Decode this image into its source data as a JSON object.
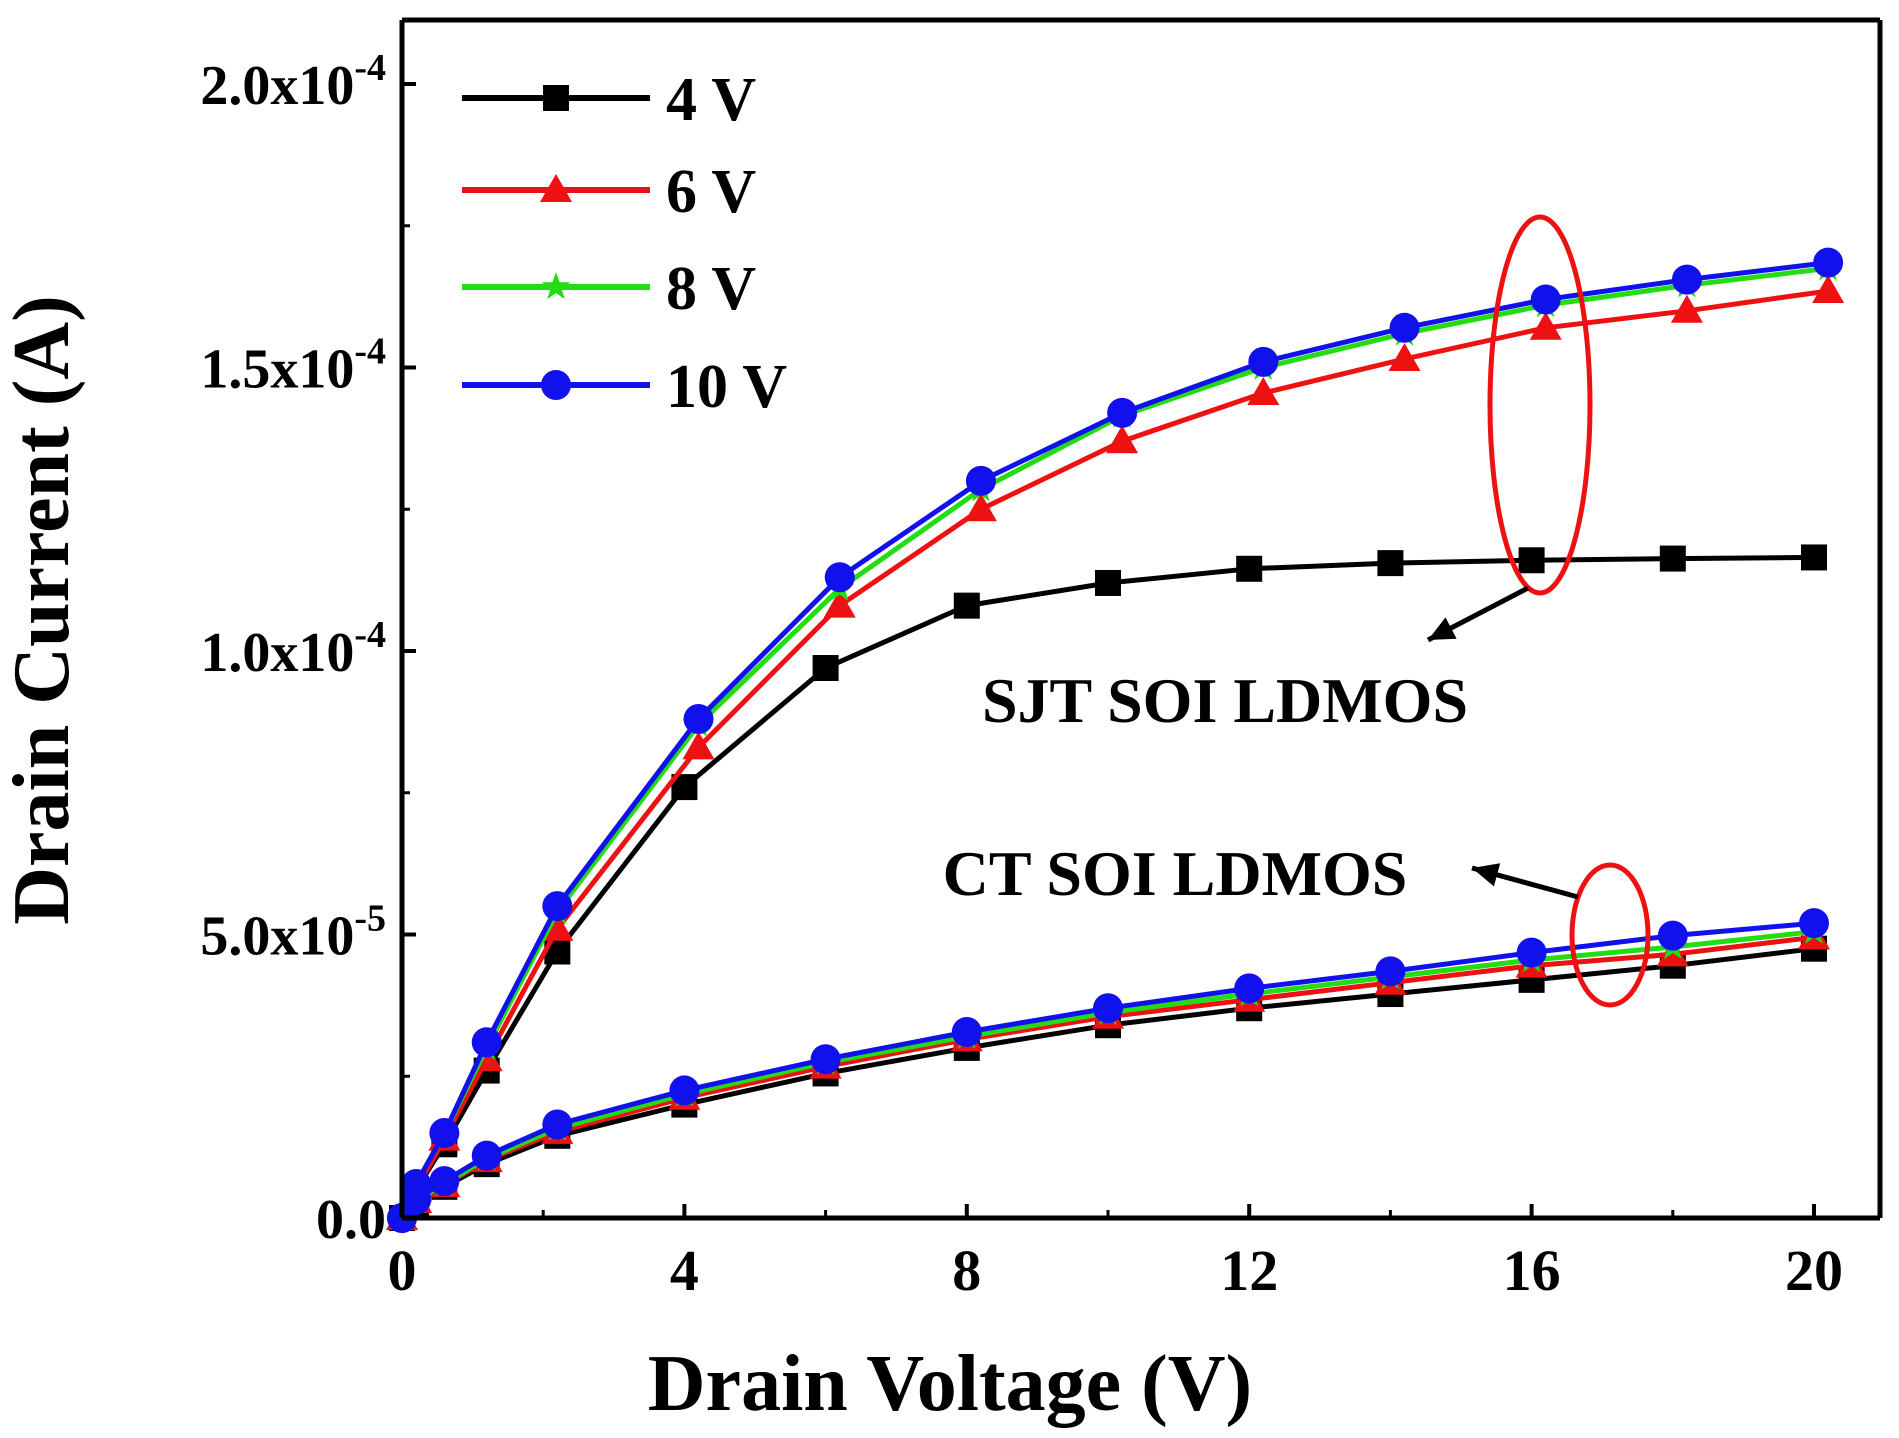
{
  "chart_data": {
    "type": "line",
    "title": "",
    "xlabel": "Drain Voltage (V)",
    "ylabel": "Drain Current (A)",
    "xlim": [
      0,
      20.8
    ],
    "ylim": [
      0,
      0.000211
    ],
    "grid": false,
    "legend_position": "top-left",
    "x_ticks": [
      0,
      4,
      8,
      12,
      16,
      20
    ],
    "x_tick_labels": [
      "0",
      "4",
      "8",
      "12",
      "16",
      "20"
    ],
    "y_ticks": [
      0,
      5e-05,
      0.0001,
      0.00015,
      0.0002
    ],
    "y_tick_labels": [
      {
        "mant": "0.0",
        "exp": ""
      },
      {
        "mant": "5.0x10",
        "exp": "-5"
      },
      {
        "mant": "1.0x10",
        "exp": "-4"
      },
      {
        "mant": "1.5x10",
        "exp": "-4"
      },
      {
        "mant": "2.0x10",
        "exp": "-4"
      }
    ],
    "series": [
      {
        "name": "4 V",
        "color": "#000000",
        "marker": "square",
        "curves": [
          {
            "group": "SJT SOI LDMOS",
            "x": [
              0,
              0.2,
              0.6,
              1.2,
              2.2,
              4,
              6,
              8,
              10,
              12,
              14,
              16,
              18,
              20
            ],
            "y": [
              0,
              5e-06,
              1.3e-05,
              2.6e-05,
              4.7e-05,
              7.6e-05,
              9.7e-05,
              0.000108,
              0.000112,
              0.0001145,
              0.0001155,
              0.000116,
              0.0001163,
              0.0001165
            ]
          },
          {
            "group": "CT SOI LDMOS",
            "x": [
              0,
              0.2,
              0.6,
              1.2,
              2.2,
              4,
              6,
              8,
              10,
              12,
              14,
              16,
              18,
              20
            ],
            "y": [
              0,
              2.5e-06,
              5.5e-06,
              9.5e-06,
              1.45e-05,
              2e-05,
              2.55e-05,
              3e-05,
              3.4e-05,
              3.7e-05,
              3.95e-05,
              4.2e-05,
              4.45e-05,
              4.75e-05
            ]
          }
        ]
      },
      {
        "name": "6 V",
        "color": "#ee1111",
        "marker": "triangle",
        "curves": [
          {
            "group": "SJT SOI LDMOS",
            "x": [
              0,
              0.2,
              0.6,
              1.2,
              2.2,
              4.2,
              6.2,
              8.2,
              10.2,
              12.2,
              14.2,
              16.2,
              18.2,
              20.2
            ],
            "y": [
              0,
              5e-06,
              1.4e-05,
              2.8e-05,
              5.1e-05,
              8.3e-05,
              0.000108,
              0.000125,
              0.000137,
              0.0001455,
              0.0001515,
              0.000157,
              0.00016,
              0.0001635
            ]
          },
          {
            "group": "CT SOI LDMOS",
            "x": [
              0,
              0.2,
              0.6,
              1.2,
              2.2,
              4,
              6,
              8,
              10,
              12,
              14,
              16,
              18,
              20
            ],
            "y": [
              0,
              3e-06,
              5.8e-06,
              1.02e-05,
              1.52e-05,
              2.12e-05,
              2.67e-05,
              3.15e-05,
              3.55e-05,
              3.85e-05,
              4.15e-05,
              4.45e-05,
              4.65e-05,
              4.95e-05
            ]
          }
        ]
      },
      {
        "name": "8 V",
        "color": "#22dd11",
        "marker": "star",
        "curves": [
          {
            "group": "SJT SOI LDMOS",
            "x": [
              0,
              0.2,
              0.6,
              1.2,
              2.2,
              4.2,
              6.2,
              8.2,
              10.2,
              12.2,
              14.2,
              16.2,
              18.2,
              20.2
            ],
            "y": [
              0,
              6e-06,
              1.5e-05,
              3e-05,
              5.4e-05,
              8.7e-05,
              0.000111,
              0.0001285,
              0.0001415,
              0.00015,
              0.000156,
              0.000161,
              0.0001645,
              0.0001675
            ]
          },
          {
            "group": "CT SOI LDMOS",
            "x": [
              0,
              0.2,
              0.6,
              1.2,
              2.2,
              4,
              6,
              8,
              10,
              12,
              14,
              16,
              18,
              20
            ],
            "y": [
              0,
              3e-06,
              6e-06,
              1.05e-05,
              1.58e-05,
              2.18e-05,
              2.74e-05,
              3.2e-05,
              3.62e-05,
              3.95e-05,
              4.25e-05,
              4.55e-05,
              4.78e-05,
              5.05e-05
            ]
          }
        ]
      },
      {
        "name": "10 V",
        "color": "#1111ee",
        "marker": "circle",
        "curves": [
          {
            "group": "SJT SOI LDMOS",
            "x": [
              0,
              0.2,
              0.6,
              1.2,
              2.2,
              4.2,
              6.2,
              8.2,
              10.2,
              12.2,
              14.2,
              16.2,
              18.2,
              20.2
            ],
            "y": [
              0,
              6e-06,
              1.5e-05,
              3.1e-05,
              5.5e-05,
              8.8e-05,
              0.000113,
              0.00013,
              0.000142,
              0.000151,
              0.000157,
              0.000162,
              0.0001655,
              0.0001685
            ]
          },
          {
            "group": "CT SOI LDMOS",
            "x": [
              0,
              0.2,
              0.6,
              1.2,
              2.2,
              4,
              6,
              8,
              10,
              12,
              14,
              16,
              18,
              20
            ],
            "y": [
              0,
              3.2e-06,
              6.5e-06,
              1.1e-05,
              1.65e-05,
              2.25e-05,
              2.8e-05,
              3.28e-05,
              3.7e-05,
              4.05e-05,
              4.35e-05,
              4.68e-05,
              4.98e-05,
              5.2e-05
            ]
          }
        ]
      }
    ],
    "annotations": [
      {
        "text": "SJT SOI LDMOS",
        "arrow_to_group": "SJT SOI LDMOS"
      },
      {
        "text": "CT SOI LDMOS",
        "arrow_to_group": "CT SOI LDMOS"
      }
    ],
    "highlight_color": "#ee1111"
  }
}
